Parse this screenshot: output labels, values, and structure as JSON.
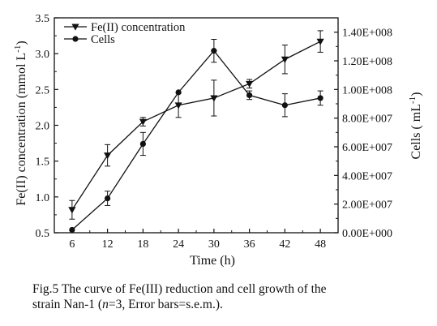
{
  "chart_data": {
    "type": "line",
    "x": [
      6,
      12,
      18,
      24,
      30,
      36,
      42,
      48
    ],
    "xlabel": "Time (h)",
    "xlim": [
      3,
      51
    ],
    "xticks": [
      6,
      12,
      18,
      24,
      30,
      36,
      42,
      48
    ],
    "ylabel_left": "Fe(II) concentration (mmol L",
    "ylabel_left_sup": "-1",
    "ylabel_left_end": ")",
    "ylim_left": [
      0.5,
      3.5
    ],
    "yticks_left": [
      0.5,
      1.0,
      1.5,
      2.0,
      2.5,
      3.0,
      3.5
    ],
    "ytick_labels_left": [
      "0.5",
      "1.0",
      "1.5",
      "2.0",
      "2.5",
      "3.0",
      "3.5"
    ],
    "ylabel_right": "Cells ( mL",
    "ylabel_right_sup": "-1",
    "ylabel_right_end": ")",
    "ylim_right": [
      0,
      150000000
    ],
    "yticks_right": [
      0,
      20000000,
      40000000,
      60000000,
      80000000,
      100000000,
      120000000,
      140000000
    ],
    "ytick_labels_right": [
      "0.00E+000",
      "2.00E+007",
      "4.00E+007",
      "6.00E+007",
      "8.00E+007",
      "1.00E+008",
      "1.20E+008",
      "1.40E+008"
    ],
    "grid": false,
    "legend_position": "top-left",
    "series": [
      {
        "name": "Fe(II) concentration",
        "axis": "left",
        "marker": "triangle-down",
        "values": [
          0.82,
          1.58,
          2.05,
          2.28,
          2.38,
          2.58,
          2.92,
          3.17
        ],
        "errors": [
          0.13,
          0.15,
          0.06,
          0.17,
          0.25,
          0.06,
          0.2,
          0.15
        ]
      },
      {
        "name": "Cells",
        "axis": "right",
        "marker": "circle",
        "values": [
          2000000,
          24000000,
          62000000,
          98000000,
          127000000,
          96000000,
          89000000,
          94000000
        ],
        "errors": [
          0,
          5000000,
          8000000,
          0,
          8000000,
          3000000,
          8000000,
          5000000
        ]
      }
    ]
  },
  "caption": {
    "line1": "Fig.5 The curve of Fe(III) reduction and cell growth of the",
    "line2_before": "strain Nan-1 (",
    "line2_n": "n",
    "line2_after": "=3, Error bars=s.e.m.)."
  }
}
